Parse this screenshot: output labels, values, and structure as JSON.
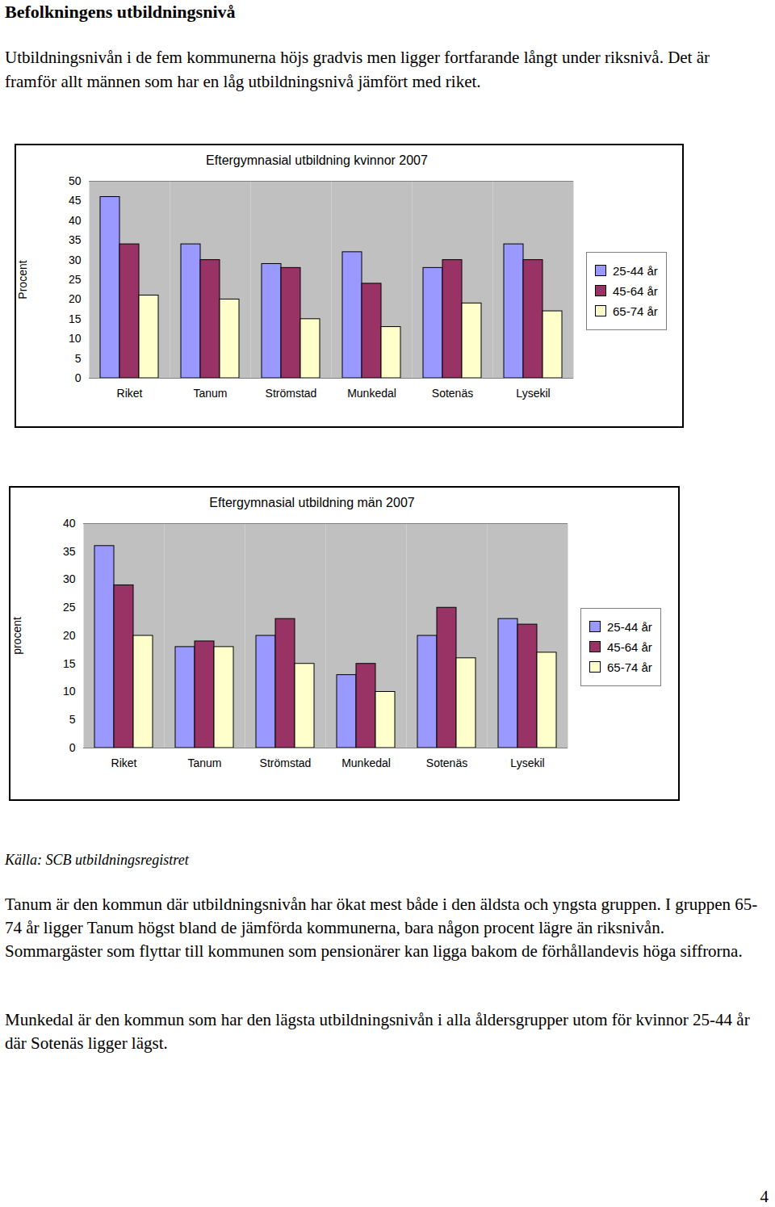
{
  "heading": "Befolkningens utbildningsnivå",
  "intro": "Utbildningsnivån i de fem kommunerna höjs gradvis men ligger fortfarande långt under riksnivå. Det är framför allt männen som har en låg utbildningsnivå jämfört med riket.",
  "chart_data": [
    {
      "type": "bar",
      "title": "Eftergymnasial utbildning kvinnor 2007",
      "ylabel": "Procent",
      "categories": [
        "Riket",
        "Tanum",
        "Strömstad",
        "Munkedal",
        "Sotenäs",
        "Lysekil"
      ],
      "series": [
        {
          "name": "25-44 år",
          "color": "#9999ff",
          "values": [
            46,
            34,
            29,
            32,
            28,
            34
          ]
        },
        {
          "name": "45-64 år",
          "color": "#993366",
          "values": [
            34,
            30,
            28,
            24,
            30,
            30
          ]
        },
        {
          "name": "65-74 år",
          "color": "#ffffcc",
          "values": [
            21,
            20,
            15,
            13,
            19,
            17
          ]
        }
      ],
      "ylim": [
        0,
        50
      ],
      "yticks": [
        0,
        5,
        10,
        15,
        20,
        25,
        30,
        35,
        40,
        45,
        50
      ],
      "grid": false,
      "legend": "right"
    },
    {
      "type": "bar",
      "title": "Eftergymnasial utbildning män 2007",
      "ylabel": "procent",
      "categories": [
        "Riket",
        "Tanum",
        "Strömstad",
        "Munkedal",
        "Sotenäs",
        "Lysekil"
      ],
      "series": [
        {
          "name": "25-44 år",
          "color": "#9999ff",
          "values": [
            36,
            18,
            20,
            13,
            20,
            23
          ]
        },
        {
          "name": "45-64 år",
          "color": "#993366",
          "values": [
            29,
            19,
            23,
            15,
            25,
            22
          ]
        },
        {
          "name": "65-74 år",
          "color": "#ffffcc",
          "values": [
            20,
            18,
            15,
            10,
            16,
            17
          ]
        }
      ],
      "ylim": [
        0,
        40
      ],
      "yticks": [
        0,
        5,
        10,
        15,
        20,
        25,
        30,
        35,
        40
      ],
      "grid": false,
      "legend": "right"
    }
  ],
  "source": "Källa: SCB utbildningsregistret",
  "paragraphs": [
    "Tanum är den kommun där utbildningsnivån har ökat mest både i den äldsta och yngsta gruppen. I gruppen 65-74 år ligger Tanum högst bland de jämförda kommunerna, bara någon procent lägre än riksnivån. Sommargäster som flyttar till kommunen som pensionärer kan ligga bakom de förhållandevis höga siffrorna.",
    "Munkedal är den kommun som har den lägsta utbildningsnivån i alla åldersgrupper utom för kvinnor 25-44 år där Sotenäs ligger lägst."
  ],
  "page_number": "4"
}
